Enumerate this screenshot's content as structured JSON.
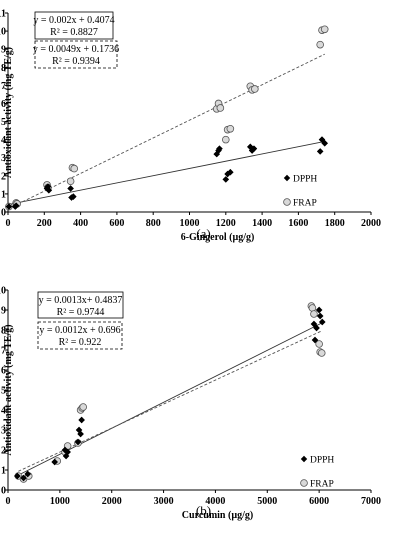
{
  "chart_data": [
    {
      "type": "scatter",
      "panel_label": "(a)",
      "xlabel": "6-Gingerol (µg/g)",
      "ylabel": "Antioxidant activity (mg TE/g)",
      "xlim": [
        0,
        2000
      ],
      "ylim": [
        0,
        11
      ],
      "x_ticks": [
        0,
        200,
        400,
        600,
        800,
        1000,
        1200,
        1400,
        1600,
        1800,
        2000
      ],
      "y_ticks": [
        0,
        1,
        2,
        3,
        4,
        5,
        6,
        7,
        8,
        9,
        10,
        11
      ],
      "grid": false,
      "legend_position": "bottom-right",
      "series": [
        {
          "name": "DPPH",
          "marker": "diamond",
          "trendline": "solid",
          "equation": "y = 0.002x + 0.4074",
          "r2": "R² = 0.8827",
          "slope": 0.002,
          "intercept": 0.4074,
          "points": [
            [
              5,
              0.3
            ],
            [
              40,
              0.3
            ],
            [
              45,
              0.35
            ],
            [
              215,
              1.3
            ],
            [
              220,
              1.4
            ],
            [
              225,
              1.2
            ],
            [
              345,
              1.3
            ],
            [
              350,
              0.8
            ],
            [
              360,
              0.85
            ],
            [
              1150,
              3.2
            ],
            [
              1160,
              3.4
            ],
            [
              1165,
              3.5
            ],
            [
              1200,
              1.8
            ],
            [
              1210,
              2.1
            ],
            [
              1225,
              2.2
            ],
            [
              1335,
              3.6
            ],
            [
              1345,
              3.4
            ],
            [
              1355,
              3.5
            ],
            [
              1720,
              3.35
            ],
            [
              1730,
              4.0
            ],
            [
              1745,
              3.8
            ]
          ]
        },
        {
          "name": "FRAP",
          "marker": "circle",
          "trendline": "dashed",
          "equation": "y = 0.0049x + 0.1736",
          "r2": "R² = 0.9394",
          "slope": 0.0049,
          "intercept": 0.1736,
          "points": [
            [
              5,
              0.3
            ],
            [
              45,
              0.5
            ],
            [
              50,
              0.45
            ],
            [
              215,
              1.5
            ],
            [
              220,
              1.35
            ],
            [
              345,
              1.7
            ],
            [
              355,
              2.45
            ],
            [
              365,
              2.4
            ],
            [
              1150,
              5.7
            ],
            [
              1160,
              6.0
            ],
            [
              1170,
              5.75
            ],
            [
              1200,
              4.0
            ],
            [
              1210,
              4.55
            ],
            [
              1225,
              4.6
            ],
            [
              1335,
              6.95
            ],
            [
              1345,
              6.75
            ],
            [
              1360,
              6.8
            ],
            [
              1720,
              9.25
            ],
            [
              1730,
              10.05
            ],
            [
              1745,
              10.1
            ]
          ]
        }
      ]
    },
    {
      "type": "scatter",
      "panel_label": "(b)",
      "xlabel": "Curcumin (µg/g)",
      "ylabel": "Antioxidant activity (mg TE/g)",
      "xlim": [
        0,
        7000
      ],
      "ylim": [
        0,
        10
      ],
      "x_ticks": [
        0,
        1000,
        2000,
        3000,
        4000,
        5000,
        6000,
        7000
      ],
      "y_ticks": [
        0,
        1,
        2,
        3,
        4,
        5,
        6,
        7,
        8,
        9,
        10
      ],
      "grid": false,
      "legend_position": "bottom-right",
      "series": [
        {
          "name": "DPPH",
          "marker": "diamond",
          "trendline": "solid",
          "equation": "y = 0.0013x+ 0.4837",
          "r2": "R² = 0.9744",
          "slope": 0.0013,
          "intercept": 0.4837,
          "points": [
            [
              180,
              0.7
            ],
            [
              300,
              0.6
            ],
            [
              380,
              0.8
            ],
            [
              900,
              1.4
            ],
            [
              1100,
              2.0
            ],
            [
              1120,
              1.7
            ],
            [
              1150,
              1.9
            ],
            [
              1350,
              2.4
            ],
            [
              1370,
              3.0
            ],
            [
              1400,
              2.8
            ],
            [
              1420,
              3.5
            ],
            [
              5900,
              8.3
            ],
            [
              5920,
              7.5
            ],
            [
              5950,
              8.1
            ],
            [
              6000,
              9.0
            ],
            [
              6020,
              8.7
            ],
            [
              6060,
              8.4
            ]
          ]
        },
        {
          "name": "FRAP",
          "marker": "circle",
          "trendline": "dashed",
          "equation": "y = 0.0012x + 0.696",
          "r2": "R² = 0.922",
          "slope": 0.0012,
          "intercept": 0.696,
          "points": [
            [
              200,
              0.7
            ],
            [
              300,
              0.55
            ],
            [
              400,
              0.7
            ],
            [
              950,
              1.45
            ],
            [
              1100,
              1.9
            ],
            [
              1150,
              2.2
            ],
            [
              1350,
              2.35
            ],
            [
              1400,
              4.0
            ],
            [
              1430,
              4.1
            ],
            [
              1450,
              4.15
            ],
            [
              5850,
              9.2
            ],
            [
              5870,
              9.1
            ],
            [
              5900,
              8.8
            ],
            [
              6000,
              7.3
            ],
            [
              6020,
              6.9
            ],
            [
              6050,
              6.85
            ]
          ]
        }
      ]
    }
  ]
}
